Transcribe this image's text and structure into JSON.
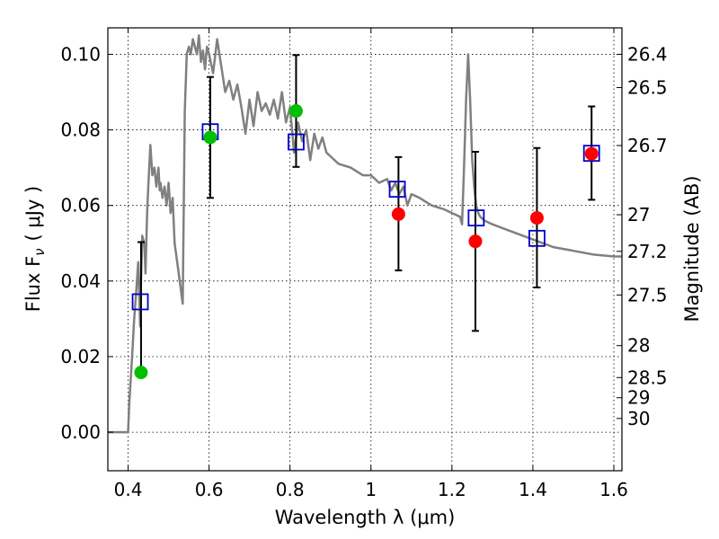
{
  "chart_data": {
    "type": "scatter",
    "xlabel": "Wavelength  λ (μm)",
    "ylabel": "Flux  F",
    "ylabel_sub": "ν",
    "ylabel_unit": "( μJy )",
    "y2label": "Magnitude (AB)",
    "xlim": [
      0.35,
      1.62
    ],
    "ylim": [
      -0.0102,
      0.107
    ],
    "x_ticks": [
      0.4,
      0.6,
      0.8,
      1.0,
      1.2,
      1.4,
      1.6
    ],
    "x_tick_labels": [
      "0.4",
      "0.6",
      "0.8",
      "1",
      "1.2",
      "1.4",
      "1.6"
    ],
    "y_ticks": [
      0.0,
      0.02,
      0.04,
      0.06,
      0.08,
      0.1
    ],
    "y_tick_labels": [
      "0.00",
      "0.02",
      "0.04",
      "0.06",
      "0.08",
      "0.10"
    ],
    "mag_ticks": [
      {
        "label": "26.4",
        "mag": 26.4
      },
      {
        "label": "26.5",
        "mag": 26.5
      },
      {
        "label": "26.7",
        "mag": 26.7
      },
      {
        "label": "27",
        "mag": 27.0
      },
      {
        "label": "27.2",
        "mag": 27.2
      },
      {
        "label": "27.5",
        "mag": 27.5
      },
      {
        "label": "28",
        "mag": 28.0
      },
      {
        "label": "28.5",
        "mag": 28.5
      },
      {
        "label": "29",
        "mag": 29.0
      },
      {
        "label": "30",
        "mag": 30.0
      }
    ],
    "grid": true,
    "colors": {
      "model": "#808080",
      "model_photometry": "#0000cc",
      "optical_points": "#00c000",
      "nir_points": "#ff0000",
      "errorbar": "#000000"
    },
    "series": [
      {
        "kind": "line",
        "x": [
          0.35,
          0.4,
          0.403,
          0.41,
          0.415,
          0.42,
          0.425,
          0.43,
          0.432,
          0.435,
          0.44,
          0.443,
          0.447,
          0.45,
          0.455,
          0.46,
          0.465,
          0.47,
          0.475,
          0.478,
          0.48,
          0.485,
          0.49,
          0.495,
          0.5,
          0.505,
          0.51,
          0.515,
          0.52,
          0.53,
          0.535,
          0.54,
          0.545,
          0.55,
          0.555,
          0.56,
          0.57,
          0.575,
          0.58,
          0.585,
          0.59,
          0.595,
          0.6,
          0.61,
          0.62,
          0.63,
          0.64,
          0.65,
          0.66,
          0.67,
          0.68,
          0.69,
          0.7,
          0.71,
          0.72,
          0.73,
          0.74,
          0.75,
          0.76,
          0.77,
          0.78,
          0.79,
          0.8,
          0.81,
          0.82,
          0.83,
          0.84,
          0.85,
          0.86,
          0.87,
          0.88,
          0.89,
          0.9,
          0.92,
          0.95,
          0.98,
          1.0,
          1.02,
          1.04,
          1.05,
          1.06,
          1.07,
          1.08,
          1.09,
          1.1,
          1.12,
          1.15,
          1.18,
          1.2,
          1.22,
          1.225,
          1.23,
          1.235,
          1.24,
          1.245,
          1.25,
          1.255,
          1.26,
          1.265,
          1.27,
          1.28,
          1.3,
          1.35,
          1.4,
          1.45,
          1.5,
          1.55,
          1.6,
          1.62
        ],
        "y": [
          0.0,
          0.0,
          0.008,
          0.02,
          0.03,
          0.037,
          0.045,
          0.028,
          0.04,
          0.052,
          0.05,
          0.042,
          0.058,
          0.065,
          0.076,
          0.068,
          0.07,
          0.065,
          0.07,
          0.064,
          0.066,
          0.062,
          0.065,
          0.06,
          0.066,
          0.058,
          0.062,
          0.05,
          0.046,
          0.038,
          0.034,
          0.085,
          0.1,
          0.102,
          0.1,
          0.104,
          0.1,
          0.105,
          0.098,
          0.101,
          0.096,
          0.102,
          0.1,
          0.095,
          0.104,
          0.097,
          0.09,
          0.093,
          0.088,
          0.092,
          0.086,
          0.079,
          0.088,
          0.081,
          0.09,
          0.085,
          0.087,
          0.084,
          0.088,
          0.083,
          0.09,
          0.082,
          0.086,
          0.074,
          0.082,
          0.077,
          0.08,
          0.072,
          0.079,
          0.075,
          0.078,
          0.074,
          0.073,
          0.071,
          0.07,
          0.068,
          0.068,
          0.066,
          0.067,
          0.064,
          0.066,
          0.063,
          0.065,
          0.06,
          0.063,
          0.062,
          0.06,
          0.059,
          0.058,
          0.057,
          0.055,
          0.07,
          0.088,
          0.1,
          0.088,
          0.072,
          0.065,
          0.06,
          0.058,
          0.057,
          0.056,
          0.055,
          0.053,
          0.051,
          0.049,
          0.048,
          0.047,
          0.0465,
          0.0465
        ]
      },
      {
        "kind": "open-square",
        "x": [
          0.43,
          0.603,
          0.815,
          1.065,
          1.26,
          1.41,
          1.545
        ],
        "y": [
          0.0345,
          0.0795,
          0.0768,
          0.0643,
          0.0567,
          0.0513,
          0.0738
        ]
      },
      {
        "kind": "filled-circle",
        "x": [
          0.432,
          0.603,
          0.815
        ],
        "y": [
          0.0158,
          0.078,
          0.085
        ],
        "yerr_low": [
          0.015,
          0.062,
          0.0702
        ],
        "yerr_high": [
          0.0503,
          0.094,
          0.0998
        ]
      },
      {
        "kind": "filled-circle",
        "x": [
          1.068,
          1.258,
          1.41,
          1.545
        ],
        "y": [
          0.0577,
          0.0505,
          0.0567,
          0.0737
        ],
        "yerr_low": [
          0.0428,
          0.0268,
          0.0383,
          0.0615
        ],
        "yerr_high": [
          0.0728,
          0.0742,
          0.0752,
          0.0862
        ]
      }
    ]
  }
}
